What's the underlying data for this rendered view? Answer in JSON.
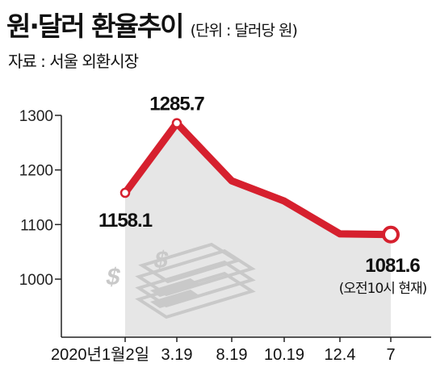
{
  "title": "원·달러 환율추이",
  "unit": "(단위 : 달러당 원)",
  "source": "자료 : 서울 외환시장",
  "colors": {
    "line": "#d6202e",
    "area": "#e6e6e6",
    "axis": "#222222"
  },
  "icon": "money-stack-icon",
  "chart_data": {
    "type": "line",
    "title": "원·달러 환율추이",
    "xlabel": "",
    "ylabel": "",
    "ylim": [
      1000,
      1300
    ],
    "yticks": [
      "1300",
      "1200",
      "1100",
      "1000"
    ],
    "x": [
      "2020년1월2일",
      "3.19",
      "8.19",
      "10.19",
      "12.4",
      "7"
    ],
    "series": [
      {
        "values": [
          1158.1,
          1285.7,
          1180,
          1143,
          1083,
          1081.6
        ]
      }
    ],
    "data_labels": [
      {
        "index": 0,
        "text": "1158.1"
      },
      {
        "index": 1,
        "text": "1285.7"
      },
      {
        "index": 5,
        "text": "1081.6"
      }
    ],
    "annotation": "(오전10시 현재)"
  }
}
